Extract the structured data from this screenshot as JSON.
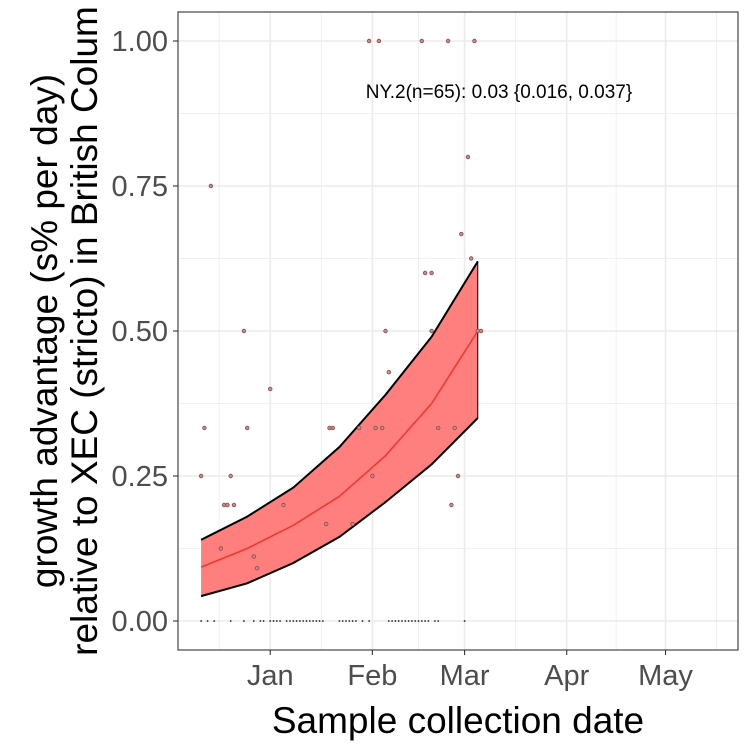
{
  "chart_data": {
    "type": "scatter",
    "title": "",
    "xlabel": "Sample collection date",
    "ylabel_lines": [
      "growth advantage (s% per day)",
      "relative to XEC (stricto) in British Colum"
    ],
    "annotation": "NY.2(n=65): 0.03 {0.016, 0.037}",
    "x_range": [
      "2024-12-04",
      "2025-05-23"
    ],
    "ylim": [
      -0.05,
      1.05
    ],
    "x_ticks": [
      {
        "date": "2025-01-01",
        "label": "Jan"
      },
      {
        "date": "2025-02-01",
        "label": "Feb"
      },
      {
        "date": "2025-03-01",
        "label": "Mar"
      },
      {
        "date": "2025-04-01",
        "label": "Apr"
      },
      {
        "date": "2025-05-01",
        "label": "May"
      }
    ],
    "y_ticks": [
      {
        "value": 0.0,
        "label": "0.00"
      },
      {
        "value": 0.25,
        "label": "0.25"
      },
      {
        "value": 0.5,
        "label": "0.50"
      },
      {
        "value": 0.75,
        "label": "0.75"
      },
      {
        "value": 1.0,
        "label": "1.00"
      }
    ],
    "grid": true,
    "colors": {
      "band_fill": "#ff7f7f",
      "fit_line": "#ee3a2e",
      "band_edge": "#000000",
      "point": "#8b4a4a",
      "grid": "#ebebeb",
      "panel_border": "#333333"
    },
    "fit": {
      "dates": [
        "2024-12-11",
        "2024-12-25",
        "2025-01-08",
        "2025-01-22",
        "2025-02-05",
        "2025-02-19",
        "2025-03-05"
      ],
      "center": [
        0.093,
        0.125,
        0.165,
        0.215,
        0.285,
        0.375,
        0.5
      ],
      "lower": [
        0.043,
        0.065,
        0.1,
        0.145,
        0.205,
        0.27,
        0.35
      ],
      "upper": [
        0.14,
        0.18,
        0.23,
        0.3,
        0.39,
        0.49,
        0.62
      ]
    },
    "points": [
      {
        "date": "2024-12-11",
        "value": 0.0
      },
      {
        "date": "2024-12-13",
        "value": 0.0
      },
      {
        "date": "2024-12-15",
        "value": 0.0
      },
      {
        "date": "2024-12-20",
        "value": 0.0
      },
      {
        "date": "2024-12-24",
        "value": 0.0
      },
      {
        "date": "2024-12-27",
        "value": 0.0
      },
      {
        "date": "2024-12-29",
        "value": 0.0
      },
      {
        "date": "2024-12-30",
        "value": 0.0
      },
      {
        "date": "2025-01-01",
        "value": 0.0
      },
      {
        "date": "2025-01-02",
        "value": 0.0
      },
      {
        "date": "2025-01-03",
        "value": 0.0
      },
      {
        "date": "2025-01-04",
        "value": 0.0
      },
      {
        "date": "2025-01-06",
        "value": 0.0
      },
      {
        "date": "2025-01-07",
        "value": 0.0
      },
      {
        "date": "2025-01-08",
        "value": 0.0
      },
      {
        "date": "2025-01-09",
        "value": 0.0
      },
      {
        "date": "2025-01-10",
        "value": 0.0
      },
      {
        "date": "2025-01-11",
        "value": 0.0
      },
      {
        "date": "2025-01-12",
        "value": 0.0
      },
      {
        "date": "2025-01-13",
        "value": 0.0
      },
      {
        "date": "2025-01-14",
        "value": 0.0
      },
      {
        "date": "2025-01-15",
        "value": 0.0
      },
      {
        "date": "2025-01-16",
        "value": 0.0
      },
      {
        "date": "2025-01-17",
        "value": 0.0
      },
      {
        "date": "2025-01-22",
        "value": 0.0
      },
      {
        "date": "2025-01-23",
        "value": 0.0
      },
      {
        "date": "2025-01-24",
        "value": 0.0
      },
      {
        "date": "2025-01-25",
        "value": 0.0
      },
      {
        "date": "2025-01-26",
        "value": 0.0
      },
      {
        "date": "2025-01-27",
        "value": 0.0
      },
      {
        "date": "2025-01-29",
        "value": 0.0
      },
      {
        "date": "2025-01-31",
        "value": 0.0
      },
      {
        "date": "2025-02-06",
        "value": 0.0
      },
      {
        "date": "2025-02-07",
        "value": 0.0
      },
      {
        "date": "2025-02-08",
        "value": 0.0
      },
      {
        "date": "2025-02-09",
        "value": 0.0
      },
      {
        "date": "2025-02-10",
        "value": 0.0
      },
      {
        "date": "2025-02-11",
        "value": 0.0
      },
      {
        "date": "2025-02-12",
        "value": 0.0
      },
      {
        "date": "2025-02-13",
        "value": 0.0
      },
      {
        "date": "2025-02-14",
        "value": 0.0
      },
      {
        "date": "2025-02-15",
        "value": 0.0
      },
      {
        "date": "2025-02-16",
        "value": 0.0
      },
      {
        "date": "2025-02-17",
        "value": 0.0
      },
      {
        "date": "2025-02-18",
        "value": 0.0
      },
      {
        "date": "2025-02-20",
        "value": 0.0
      },
      {
        "date": "2025-02-21",
        "value": 0.0
      },
      {
        "date": "2025-03-01",
        "value": 0.0
      },
      {
        "date": "2024-12-11",
        "value": 0.25
      },
      {
        "date": "2024-12-12",
        "value": 0.333
      },
      {
        "date": "2024-12-14",
        "value": 0.75
      },
      {
        "date": "2024-12-17",
        "value": 0.125
      },
      {
        "date": "2024-12-18",
        "value": 0.2
      },
      {
        "date": "2024-12-19",
        "value": 0.2
      },
      {
        "date": "2024-12-20",
        "value": 0.25
      },
      {
        "date": "2024-12-21",
        "value": 0.2
      },
      {
        "date": "2024-12-24",
        "value": 0.5
      },
      {
        "date": "2024-12-25",
        "value": 0.333
      },
      {
        "date": "2024-12-27",
        "value": 0.111
      },
      {
        "date": "2024-12-28",
        "value": 0.091
      },
      {
        "date": "2025-01-01",
        "value": 0.4
      },
      {
        "date": "2025-01-05",
        "value": 0.2
      },
      {
        "date": "2025-01-18",
        "value": 0.167
      },
      {
        "date": "2025-01-19",
        "value": 0.333
      },
      {
        "date": "2025-01-20",
        "value": 0.333
      },
      {
        "date": "2025-01-26",
        "value": 0.167
      },
      {
        "date": "2025-01-28",
        "value": 0.333
      },
      {
        "date": "2025-01-31",
        "value": 1.0
      },
      {
        "date": "2025-02-01",
        "value": 0.25
      },
      {
        "date": "2025-02-02",
        "value": 0.333
      },
      {
        "date": "2025-02-03",
        "value": 1.0
      },
      {
        "date": "2025-02-04",
        "value": 0.333
      },
      {
        "date": "2025-02-05",
        "value": 0.5
      },
      {
        "date": "2025-02-06",
        "value": 0.429
      },
      {
        "date": "2025-02-16",
        "value": 1.0
      },
      {
        "date": "2025-02-17",
        "value": 0.6
      },
      {
        "date": "2025-02-19",
        "value": 0.6
      },
      {
        "date": "2025-02-19",
        "value": 0.5
      },
      {
        "date": "2025-02-21",
        "value": 0.333
      },
      {
        "date": "2025-02-24",
        "value": 1.0
      },
      {
        "date": "2025-02-25",
        "value": 0.2
      },
      {
        "date": "2025-02-26",
        "value": 0.333
      },
      {
        "date": "2025-02-27",
        "value": 0.25
      },
      {
        "date": "2025-02-28",
        "value": 0.667
      },
      {
        "date": "2025-03-02",
        "value": 0.8
      },
      {
        "date": "2025-03-03",
        "value": 0.625
      },
      {
        "date": "2025-03-04",
        "value": 1.0
      },
      {
        "date": "2025-03-05",
        "value": 0.5
      },
      {
        "date": "2025-03-06",
        "value": 0.5
      }
    ]
  }
}
